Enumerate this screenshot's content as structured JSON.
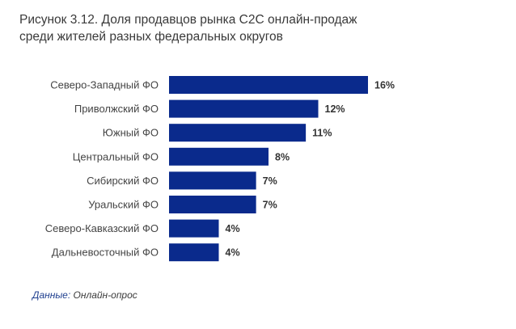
{
  "title": {
    "line1": "Рисунок 3.12. Доля продавцов рынка C2C онлайн-продаж",
    "line2": "среди жителей разных федеральных округов"
  },
  "source": {
    "label": "Данные:",
    "text": " Онлайн-опрос"
  },
  "colors": {
    "bar": "#0a2a8c",
    "label": "#444444",
    "value": "#333333"
  },
  "chart_data": {
    "type": "bar",
    "orientation": "horizontal",
    "categories": [
      "Северо-Западный ФО",
      "Приволжский ФО",
      "Южный ФО",
      "Центральный ФО",
      "Сибирский ФО",
      "Уральский ФО",
      "Северо-Кавказский ФО",
      "Дальневосточный ФО"
    ],
    "values": [
      16,
      12,
      11,
      8,
      7,
      7,
      4,
      4
    ],
    "value_labels": [
      "16%",
      "12%",
      "11%",
      "8%",
      "7%",
      "7%",
      "4%",
      "4%"
    ],
    "unit": "%",
    "xlim": [
      0,
      16
    ],
    "grid": false,
    "legend": "none"
  }
}
